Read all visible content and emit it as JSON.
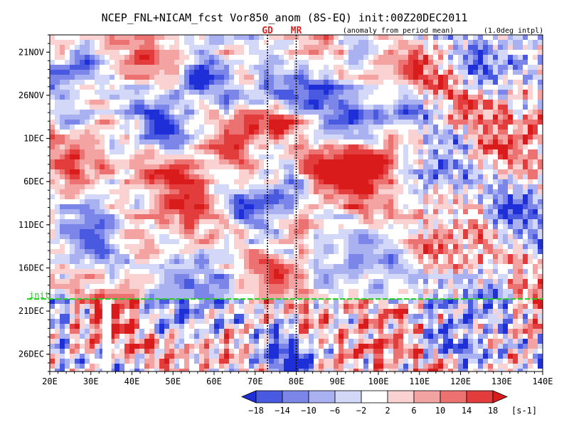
{
  "chart_data": {
    "type": "heatmap",
    "title": "NCEP_FNL+NICAM_fcst Vor850_anom (8S-EQ) init:00Z20DEC2011",
    "annotation_left": "(anomaly from period mean)",
    "annotation_right": "(1.0deg intpl)",
    "x_axis": {
      "range": [
        20,
        140
      ],
      "unit": "deg E",
      "tick_values": [
        20,
        30,
        40,
        50,
        60,
        70,
        80,
        90,
        100,
        110,
        120,
        130,
        140
      ],
      "tick_labels": [
        "20E",
        "30E",
        "40E",
        "50E",
        "60E",
        "70E",
        "80E",
        "90E",
        "100E",
        "110E",
        "120E",
        "130E",
        "140E"
      ]
    },
    "y_axis": {
      "direction": "time increases downward",
      "range_days": [
        "19NOV2011",
        "28DEC2011"
      ],
      "tick_labels": [
        "21NOV",
        "26NOV",
        "1DEC",
        "6DEC",
        "11DEC",
        "16DEC",
        "21DEC",
        "26DEC"
      ]
    },
    "init_line": {
      "label": "init",
      "color": "#22cc22"
    },
    "markers": [
      {
        "label": "GD",
        "lon": 73,
        "color": "#dd2222"
      },
      {
        "label": "MR",
        "lon": 80,
        "color": "#dd2222"
      }
    ],
    "colorbar": {
      "levels": [
        "-18",
        "-14",
        "-10",
        "-6",
        "-2",
        "2",
        "6",
        "10",
        "14",
        "18"
      ],
      "colors": [
        "#1f2fd8",
        "#4a5ae0",
        "#7b86e8",
        "#a9b1f0",
        "#d4d8f8",
        "#ffffff",
        "#fbd2d2",
        "#f4a3a3",
        "#ec7272",
        "#e33c3c",
        "#da1b1b"
      ],
      "unit": "[s-1]"
    }
  }
}
